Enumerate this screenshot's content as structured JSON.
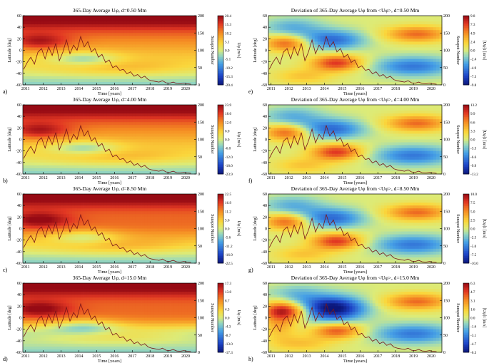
{
  "figure": {
    "time_axis_label": "Time [years]",
    "latitude_axis_label": "Latitude [deg]",
    "sunspot_axis_label": "Sunspot Number",
    "x_ticks": [
      "2011",
      "2012",
      "2013",
      "2014",
      "2015",
      "2016",
      "2017",
      "2018",
      "2019",
      "2020"
    ],
    "lat_ticks": [
      "60",
      "40",
      "20",
      "0",
      "-20",
      "-40",
      "-60"
    ],
    "sunspot_ticks": [
      "200",
      "150",
      "100",
      "50",
      "0"
    ]
  },
  "chart_data": [
    {
      "panel": "a)",
      "type": "heatmap",
      "title": "365-Day Average Uφ, d=0.50 Mm",
      "colorbar_label": "Uφ [m/s]",
      "colorbar_ticks": [
        "20.4",
        "15.3",
        "10.2",
        "5.1",
        "0.0",
        "-5.1",
        "-10.2",
        "-15.3",
        "-20.4"
      ],
      "range": [
        -20.4,
        20.4
      ],
      "mode": "avg",
      "depth_index": 0
    },
    {
      "panel": "b)",
      "type": "heatmap",
      "title": "365-Day Average Uφ, d=4.00 Mm",
      "colorbar_label": "Uφ [m/s]",
      "colorbar_ticks": [
        "23.9",
        "18.0",
        "12.0",
        "6.0",
        "0.0",
        "-6.0",
        "-12.0",
        "-18.0",
        "-23.9"
      ],
      "range": [
        -23.9,
        23.9
      ],
      "mode": "avg",
      "depth_index": 1
    },
    {
      "panel": "c)",
      "type": "heatmap",
      "title": "365-Day Average Uφ, d=8.50 Mm",
      "colorbar_label": "Uφ [m/s]",
      "colorbar_ticks": [
        "22.5",
        "16.9",
        "11.2",
        "5.6",
        "0.0",
        "-5.6",
        "-11.2",
        "-16.9",
        "-22.5"
      ],
      "range": [
        -22.5,
        22.5
      ],
      "mode": "avg",
      "depth_index": 2
    },
    {
      "panel": "d)",
      "type": "heatmap",
      "title": "365-Day Average Uφ, d=15.0 Mm",
      "colorbar_label": "Uφ [m/s]",
      "colorbar_ticks": [
        "17.3",
        "13.0",
        "8.7",
        "4.3",
        "0.0",
        "-4.3",
        "-8.7",
        "-13.0",
        "-17.3"
      ],
      "range": [
        -17.3,
        17.3
      ],
      "mode": "avg",
      "depth_index": 3
    },
    {
      "panel": "e)",
      "type": "heatmap",
      "title": "Deviation of 365-Day Average Uφ from <Uφ>, d=0.50 Mm",
      "colorbar_label": "[Uφ]t [m/s]",
      "colorbar_ticks": [
        "9.8",
        "7.3",
        "4.9",
        "2.4",
        "0.0",
        "-2.4",
        "-4.9",
        "-7.3",
        "-9.8"
      ],
      "range": [
        -9.8,
        9.8
      ],
      "mode": "dev",
      "depth_index": 0
    },
    {
      "panel": "f)",
      "type": "heatmap",
      "title": "Deviation of 365-Day Average Uφ from <Uφ>, d=4.00 Mm",
      "colorbar_label": "[Uφ]t [m/s]",
      "colorbar_ticks": [
        "13.2",
        "9.9",
        "6.6",
        "3.3",
        "0.0",
        "-3.3",
        "-6.6",
        "-9.9",
        "-13.2"
      ],
      "range": [
        -13.2,
        13.2
      ],
      "mode": "dev",
      "depth_index": 1
    },
    {
      "panel": "g)",
      "type": "heatmap",
      "title": "Deviation of 365-Day Average Uφ from <Uφ>, d=8.50 Mm",
      "colorbar_label": "[Uφ]t [m/s]",
      "colorbar_ticks": [
        "10.0",
        "7.5",
        "5.0",
        "2.5",
        "0.0",
        "-2.5",
        "-5.0",
        "-7.5",
        "-10.0"
      ],
      "range": [
        -10.0,
        10.0
      ],
      "mode": "dev",
      "depth_index": 2
    },
    {
      "panel": "h)",
      "type": "heatmap",
      "title": "Deviation of 365-Day Average Uφ from <Uφ>, d=15.0 Mm",
      "colorbar_label": "[Uφ]t [m/s]",
      "colorbar_ticks": [
        "6.3",
        "4.7",
        "3.1",
        "1.6",
        "0.0",
        "-1.6",
        "-3.1",
        "-4.7",
        "-6.3"
      ],
      "range": [
        -6.3,
        6.3
      ],
      "mode": "dev",
      "depth_index": 3
    }
  ],
  "sunspot_series": {
    "x": [
      2010.9,
      2011.1,
      2011.3,
      2011.5,
      2011.7,
      2011.9,
      2012.1,
      2012.3,
      2012.5,
      2012.7,
      2012.9,
      2013.1,
      2013.3,
      2013.5,
      2013.7,
      2013.9,
      2014.1,
      2014.3,
      2014.5,
      2014.7,
      2014.9,
      2015.1,
      2015.3,
      2015.5,
      2015.7,
      2015.9,
      2016.1,
      2016.3,
      2016.5,
      2016.7,
      2016.9,
      2017.1,
      2017.3,
      2017.5,
      2017.7,
      2017.9,
      2018.1,
      2018.3,
      2018.5,
      2018.7,
      2018.9,
      2019.1,
      2019.3,
      2019.5,
      2019.7,
      2019.9,
      2020.1,
      2020.3
    ],
    "y": [
      45,
      65,
      80,
      60,
      95,
      105,
      75,
      110,
      85,
      120,
      70,
      95,
      130,
      90,
      115,
      100,
      140,
      110,
      125,
      95,
      105,
      80,
      88,
      65,
      72,
      50,
      55,
      42,
      45,
      32,
      38,
      25,
      30,
      20,
      25,
      15,
      12,
      10,
      8,
      12,
      6,
      5,
      8,
      4,
      3,
      5,
      3,
      2
    ]
  },
  "colors": {
    "line": "#7a1418",
    "frame": "#000000"
  }
}
